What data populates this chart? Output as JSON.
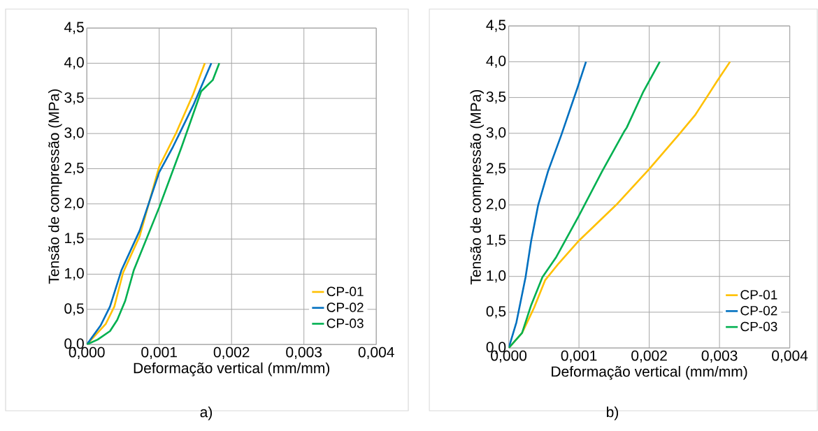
{
  "chart_data": [
    {
      "type": "line",
      "xlabel": "Deformação vertical (mm/mm)",
      "ylabel": "Tensão de compressão (MPa)",
      "annotations": [
        "a)"
      ],
      "xlim": [
        0,
        0.004
      ],
      "ylim": [
        0,
        4.5
      ],
      "xticks": [
        {
          "value": 0,
          "label": "0,000"
        },
        {
          "value": 0.001,
          "label": "0,001"
        },
        {
          "value": 0.002,
          "label": "0,002"
        },
        {
          "value": 0.003,
          "label": "0,003"
        },
        {
          "value": 0.004,
          "label": "0,004"
        }
      ],
      "yticks": [
        {
          "value": 0,
          "label": "0,0"
        },
        {
          "value": 0.5,
          "label": "0,5"
        },
        {
          "value": 1,
          "label": "1,0"
        },
        {
          "value": 1.5,
          "label": "1,5"
        },
        {
          "value": 2,
          "label": "2,0"
        },
        {
          "value": 2.5,
          "label": "2,5"
        },
        {
          "value": 3,
          "label": "3,0"
        },
        {
          "value": 3.5,
          "label": "3,5"
        },
        {
          "value": 4,
          "label": "4,0"
        },
        {
          "value": 4.5,
          "label": "4,5"
        }
      ],
      "grid": true,
      "legend": "bottom right",
      "marker": "none",
      "line_style": "solid",
      "series": [
        {
          "name": "CP-01",
          "color": "#ffc000",
          "x": [
            0,
            0.00026,
            0.00038,
            0.0005,
            0.00073,
            0.001,
            0.00123,
            0.00147,
            0.00163
          ],
          "values": [
            0,
            0.29,
            0.54,
            1.02,
            1.54,
            2.53,
            3.0,
            3.56,
            4.0
          ]
        },
        {
          "name": "CP-02",
          "color": "#0070c0",
          "x": [
            0,
            0.00019,
            0.00032,
            0.00048,
            0.00073,
            0.001,
            0.00119,
            0.00147,
            0.00172
          ],
          "values": [
            0,
            0.27,
            0.54,
            1.06,
            1.62,
            2.45,
            2.81,
            3.4,
            4.0
          ]
        },
        {
          "name": "CP-03",
          "color": "#00b050",
          "x": [
            0,
            0.00015,
            0.00032,
            0.00042,
            0.00053,
            0.00065,
            0.001,
            0.00131,
            0.00158,
            0.00174,
            0.00183
          ],
          "values": [
            0,
            0.07,
            0.19,
            0.35,
            0.62,
            1.06,
            1.95,
            2.81,
            3.6,
            3.76,
            4.0
          ]
        }
      ]
    },
    {
      "type": "line",
      "xlabel": "Deformação vertical (mm/mm)",
      "ylabel": "Tensão de compressão (MPa)",
      "annotations": [
        "b)"
      ],
      "xlim": [
        0,
        0.004
      ],
      "ylim": [
        0,
        4.5
      ],
      "xticks": [
        {
          "value": 0,
          "label": "0,000"
        },
        {
          "value": 0.001,
          "label": "0,001"
        },
        {
          "value": 0.002,
          "label": "0,002"
        },
        {
          "value": 0.003,
          "label": "0,003"
        },
        {
          "value": 0.004,
          "label": "0,004"
        }
      ],
      "yticks": [
        {
          "value": 0,
          "label": "0,0"
        },
        {
          "value": 0.5,
          "label": "0,5"
        },
        {
          "value": 1,
          "label": "1,0"
        },
        {
          "value": 1.5,
          "label": "1,5"
        },
        {
          "value": 2,
          "label": "2,0"
        },
        {
          "value": 2.5,
          "label": "2,5"
        },
        {
          "value": 3,
          "label": "3,0"
        },
        {
          "value": 3.5,
          "label": "3,5"
        },
        {
          "value": 4,
          "label": "4,0"
        },
        {
          "value": 4.5,
          "label": "4,5"
        }
      ],
      "grid": true,
      "legend": "bottom right",
      "marker": "none",
      "line_style": "solid",
      "series": [
        {
          "name": "CP-01",
          "color": "#ffc000",
          "x": [
            0,
            0.00019,
            0.00036,
            0.00052,
            0.00071,
            0.001,
            0.00153,
            0.00199,
            0.00242,
            0.00265,
            0.00273,
            0.00296,
            0.00315
          ],
          "values": [
            0,
            0.21,
            0.56,
            0.95,
            1.18,
            1.5,
            2.0,
            2.49,
            2.98,
            3.25,
            3.37,
            3.72,
            4.0
          ]
        },
        {
          "name": "CP-02",
          "color": "#0070c0",
          "x": [
            0,
            0.00011,
            0.00024,
            0.00032,
            0.00042,
            0.00056,
            0.00075,
            0.00098,
            0.0011
          ],
          "values": [
            0,
            0.36,
            0.99,
            1.5,
            2.0,
            2.47,
            2.98,
            3.64,
            4.0
          ]
        },
        {
          "name": "CP-03",
          "color": "#00b050",
          "x": [
            0,
            0.00019,
            0.00032,
            0.00048,
            0.00067,
            0.001,
            0.00133,
            0.00164,
            0.00168,
            0.00191,
            0.00215
          ],
          "values": [
            0,
            0.21,
            0.6,
            0.99,
            1.26,
            1.85,
            2.47,
            3.02,
            3.08,
            3.57,
            4.0
          ]
        }
      ]
    }
  ]
}
